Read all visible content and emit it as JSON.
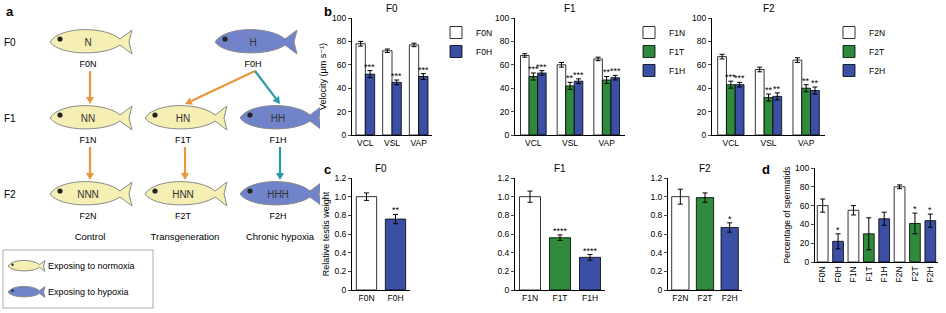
{
  "panel_labels": [
    "a",
    "b",
    "c",
    "d"
  ],
  "diagram": {
    "colors": {
      "normoxia": "#f6efb4",
      "hypoxia": "#7184c9"
    },
    "rows": [
      {
        "label": "F0",
        "fish": [
          {
            "label": "N",
            "caption": "F0N",
            "exposure": "normoxia"
          },
          {
            "label": "H",
            "caption": "F0H",
            "exposure": "hypoxia"
          }
        ]
      },
      {
        "label": "F1",
        "fish": [
          {
            "label": "NN",
            "caption": "F1N",
            "exposure": "normoxia"
          },
          {
            "label": "HN",
            "caption": "F1T",
            "exposure": "normoxia"
          },
          {
            "label": "HH",
            "caption": "F1H",
            "exposure": "hypoxia"
          }
        ]
      },
      {
        "label": "F2",
        "fish": [
          {
            "label": "NNN",
            "caption": "F2N",
            "exposure": "normoxia"
          },
          {
            "label": "HNN",
            "caption": "F2T",
            "exposure": "normoxia"
          },
          {
            "label": "HHH",
            "caption": "F2H",
            "exposure": "hypoxia"
          }
        ]
      }
    ],
    "columns": [
      "Control",
      "Transgeneration",
      "Chronic hypoxia"
    ],
    "legend": [
      {
        "text": "Exposing to normoxia",
        "exposure": "normoxia"
      },
      {
        "text": "Exposing to hypoxia",
        "exposure": "hypoxia"
      }
    ]
  },
  "chart_data": [
    {
      "type": "bar",
      "title": "F0",
      "ylabel": "Velocity (μm s⁻¹)",
      "categories": [
        "VCL",
        "VSL",
        "VAP"
      ],
      "series": [
        {
          "name": "F0N",
          "color": "#ffffff",
          "values": [
            78,
            72,
            77
          ],
          "errors": [
            2,
            1.5,
            1.5
          ]
        },
        {
          "name": "F0H",
          "color": "#3b4fa5",
          "values": [
            52,
            45,
            50
          ],
          "errors": [
            3,
            2,
            2.5
          ],
          "significance": [
            "***",
            "***",
            "***"
          ]
        }
      ],
      "ylim": [
        0,
        100
      ],
      "yticks": [
        0,
        20,
        40,
        60,
        80,
        100
      ],
      "legend": "right"
    },
    {
      "type": "bar",
      "title": "F1",
      "categories": [
        "VCL",
        "VSL",
        "VAP"
      ],
      "series": [
        {
          "name": "F1N",
          "color": "#ffffff",
          "values": [
            68,
            60,
            65
          ],
          "errors": [
            1.5,
            2,
            1.5
          ]
        },
        {
          "name": "F1T",
          "color": "#2f8a3c",
          "values": [
            50,
            42,
            47
          ],
          "errors": [
            3,
            3,
            3
          ],
          "significance": [
            "***",
            "**",
            "**"
          ]
        },
        {
          "name": "F1H",
          "color": "#3b4fa5",
          "values": [
            53,
            46,
            49
          ],
          "errors": [
            2,
            2,
            2
          ],
          "significance": [
            "***",
            "***",
            "***"
          ]
        }
      ],
      "ylim": [
        0,
        100
      ],
      "yticks": [
        0,
        20,
        40,
        60,
        80,
        100
      ],
      "legend": "right"
    },
    {
      "type": "bar",
      "title": "F2",
      "categories": [
        "VCL",
        "VSL",
        "VAP"
      ],
      "series": [
        {
          "name": "F2N",
          "color": "#ffffff",
          "values": [
            67,
            56,
            64
          ],
          "errors": [
            2,
            2,
            2
          ]
        },
        {
          "name": "F2T",
          "color": "#2f8a3c",
          "values": [
            43,
            32,
            40
          ],
          "errors": [
            3,
            3,
            3
          ],
          "significance": [
            "***",
            "**",
            "**"
          ]
        },
        {
          "name": "F2H",
          "color": "#3b4fa5",
          "values": [
            43,
            33,
            38
          ],
          "errors": [
            2,
            3,
            3
          ],
          "significance": [
            "***",
            "**",
            "**"
          ]
        }
      ],
      "ylim": [
        0,
        100
      ],
      "yticks": [
        0,
        20,
        40,
        60,
        80,
        100
      ],
      "legend": "right"
    },
    {
      "type": "bar",
      "title": "F0",
      "ylabel": "Relative testis weight",
      "categories": [
        "F0N",
        "F0H"
      ],
      "values": [
        1,
        0.76
      ],
      "errors": [
        0.04,
        0.05
      ],
      "significance": [
        null,
        "**"
      ],
      "colors": [
        "#ffffff",
        "#3b4fa5"
      ],
      "ylim": [
        0,
        1.2
      ],
      "yticks": [
        0,
        0.2,
        0.4,
        0.6,
        0.8,
        {
          "value": 1,
          "label": "1.0"
        },
        1.2
      ]
    },
    {
      "type": "bar",
      "title": "F1",
      "categories": [
        "F1N",
        "F1T",
        "F1H"
      ],
      "values": [
        1,
        0.56,
        0.35
      ],
      "errors": [
        0.06,
        0.03,
        0.03
      ],
      "significance": [
        null,
        "****",
        "****"
      ],
      "colors": [
        "#ffffff",
        "#2f8a3c",
        "#3b4fa5"
      ],
      "ylim": [
        0,
        1.2
      ],
      "yticks": [
        0,
        0.2,
        0.4,
        0.6,
        0.8,
        {
          "value": 1,
          "label": "1.0"
        },
        1.2
      ]
    },
    {
      "type": "bar",
      "title": "F2",
      "categories": [
        "F2N",
        "F2T",
        "F2H"
      ],
      "values": [
        1,
        0.99,
        0.67
      ],
      "errors": [
        0.08,
        0.05,
        0.05
      ],
      "significance": [
        null,
        null,
        "*"
      ],
      "colors": [
        "#ffffff",
        "#2f8a3c",
        "#3b4fa5"
      ],
      "ylim": [
        0,
        1.2
      ],
      "yticks": [
        0,
        0.2,
        0.4,
        0.6,
        0.8,
        {
          "value": 1,
          "label": "1.0"
        },
        1.2
      ]
    },
    {
      "type": "bar",
      "ylabel": "Percentage of spermatids",
      "categories": [
        "F0N",
        "F0H",
        "F1N",
        "F1T",
        "F1H",
        "F2N",
        "F2T",
        "F2H"
      ],
      "values": [
        60,
        22,
        55,
        30,
        46,
        80,
        41,
        44
      ],
      "errors": [
        7,
        8,
        5,
        17,
        7,
        2,
        11,
        7
      ],
      "significance": [
        null,
        "*",
        null,
        null,
        null,
        null,
        "*",
        "*"
      ],
      "colors": [
        "#ffffff",
        "#3b4fa5",
        "#ffffff",
        "#2f8a3c",
        "#3b4fa5",
        "#ffffff",
        "#2f8a3c",
        "#3b4fa5"
      ],
      "ylim": [
        0,
        100
      ],
      "yticks": [
        0,
        20,
        40,
        60,
        80,
        100
      ]
    }
  ]
}
